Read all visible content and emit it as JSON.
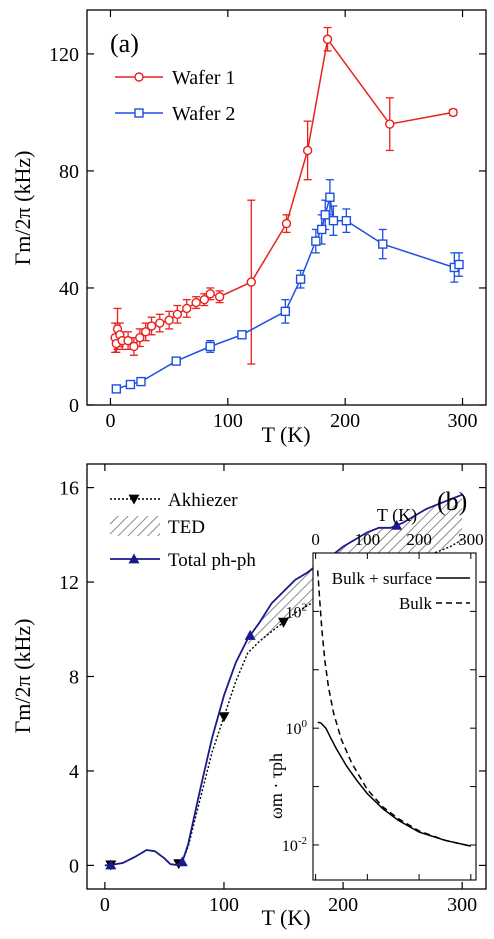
{
  "chart_data": [
    {
      "type": "line",
      "panel_label": "(a)",
      "xlabel": "T (K)",
      "ylabel": "Γm/2π (kHz)",
      "xlim": [
        -20,
        320
      ],
      "ylim": [
        0,
        135
      ],
      "xticks": [
        0,
        100,
        200,
        300
      ],
      "yticks": [
        0,
        40,
        80,
        120
      ],
      "grid": false,
      "legend": "top-left",
      "series": [
        {
          "name": "Wafer 1",
          "color": "#e8201e",
          "marker": "circle",
          "points": [
            {
              "x": 4,
              "y": 23,
              "err": 5
            },
            {
              "x": 5,
              "y": 21,
              "err": 3
            },
            {
              "x": 6,
              "y": 26,
              "err": 7
            },
            {
              "x": 8,
              "y": 24,
              "err": 4
            },
            {
              "x": 10,
              "y": 22,
              "err": 3
            },
            {
              "x": 15,
              "y": 22,
              "err": 3
            },
            {
              "x": 20,
              "y": 20,
              "err": 3
            },
            {
              "x": 25,
              "y": 23,
              "err": 3
            },
            {
              "x": 30,
              "y": 25,
              "err": 3
            },
            {
              "x": 35,
              "y": 27,
              "err": 3
            },
            {
              "x": 42,
              "y": 28,
              "err": 3
            },
            {
              "x": 50,
              "y": 29,
              "err": 3
            },
            {
              "x": 57,
              "y": 31,
              "err": 3
            },
            {
              "x": 65,
              "y": 33,
              "err": 3
            },
            {
              "x": 73,
              "y": 35,
              "err": 2
            },
            {
              "x": 80,
              "y": 36,
              "err": 2
            },
            {
              "x": 85,
              "y": 38,
              "err": 2
            },
            {
              "x": 93,
              "y": 37,
              "err": 2
            },
            {
              "x": 120,
              "y": 42,
              "err": 28
            },
            {
              "x": 150,
              "y": 62,
              "err": 3
            },
            {
              "x": 168,
              "y": 87,
              "err": 10
            },
            {
              "x": 185,
              "y": 125,
              "err": 4
            },
            {
              "x": 238,
              "y": 96,
              "err": 9
            },
            {
              "x": 292,
              "y": 100,
              "err": 1
            }
          ]
        },
        {
          "name": "Wafer 2",
          "color": "#1f4fe0",
          "marker": "square",
          "points": [
            {
              "x": 5,
              "y": 5.5,
              "err": 1
            },
            {
              "x": 17,
              "y": 7,
              "err": 1
            },
            {
              "x": 26,
              "y": 8,
              "err": 1
            },
            {
              "x": 56,
              "y": 15,
              "err": 1
            },
            {
              "x": 85,
              "y": 20,
              "err": 2
            },
            {
              "x": 112,
              "y": 24,
              "err": 1
            },
            {
              "x": 149,
              "y": 32,
              "err": 4
            },
            {
              "x": 162,
              "y": 43,
              "err": 3
            },
            {
              "x": 175,
              "y": 56,
              "err": 4
            },
            {
              "x": 180,
              "y": 60,
              "err": 5
            },
            {
              "x": 183,
              "y": 65,
              "err": 5
            },
            {
              "x": 187,
              "y": 71,
              "err": 6
            },
            {
              "x": 190,
              "y": 63,
              "err": 5
            },
            {
              "x": 201,
              "y": 63,
              "err": 4
            },
            {
              "x": 232,
              "y": 55,
              "err": 5
            },
            {
              "x": 293,
              "y": 47,
              "err": 5
            },
            {
              "x": 297,
              "y": 48,
              "err": 4
            }
          ]
        }
      ]
    },
    {
      "type": "line",
      "panel_label": "(b)",
      "xlabel": "T (K)",
      "ylabel": "Γm/2π (kHz)",
      "xlim": [
        -15,
        320
      ],
      "ylim": [
        -1,
        17
      ],
      "xticks": [
        0,
        100,
        200,
        300
      ],
      "yticks": [
        0,
        4,
        8,
        12,
        16
      ],
      "grid": false,
      "legend": "top-left",
      "series": [
        {
          "name": "Akhiezer",
          "color": "#000000",
          "style": "dotted",
          "marker": "triangle-down",
          "x": [
            0,
            5,
            15,
            25,
            35,
            42,
            50,
            55,
            60,
            65,
            70,
            80,
            90,
            100,
            110,
            120,
            130,
            140,
            150,
            160,
            170,
            180,
            190,
            200,
            210,
            220,
            230,
            240,
            250,
            260,
            270,
            280,
            290,
            300
          ],
          "y": [
            0,
            0.02,
            0.1,
            0.35,
            0.65,
            0.6,
            0.3,
            0.05,
            0.02,
            0.15,
            0.8,
            2.8,
            4.8,
            6.3,
            7.8,
            9.0,
            9.5,
            9.9,
            10.3,
            10.7,
            11.0,
            11.3,
            11.5,
            11.9,
            12.1,
            12.5,
            12.7,
            12.6,
            12.8,
            12.9,
            13.1,
            13.3,
            13.5,
            13.8
          ],
          "marker_x": [
            5,
            62,
            100,
            150,
            195,
            255
          ]
        },
        {
          "name": "TED",
          "color": "#808080",
          "style": "hatched"
        },
        {
          "name": "Total ph-ph",
          "color": "#1a1a8c",
          "style": "solid",
          "marker": "triangle-up",
          "x": [
            0,
            5,
            15,
            25,
            35,
            42,
            50,
            55,
            60,
            65,
            70,
            80,
            90,
            100,
            110,
            120,
            130,
            140,
            150,
            160,
            170,
            180,
            190,
            200,
            210,
            220,
            230,
            240,
            250,
            260,
            270,
            280,
            290,
            300
          ],
          "y": [
            0,
            0.02,
            0.1,
            0.35,
            0.65,
            0.6,
            0.3,
            0.05,
            0.02,
            0.15,
            0.9,
            3.2,
            5.4,
            7.2,
            8.6,
            9.6,
            10.3,
            11.1,
            11.6,
            12.1,
            12.4,
            12.8,
            13.1,
            13.5,
            13.8,
            14.1,
            14.3,
            14.3,
            14.5,
            14.8,
            15.1,
            15.3,
            15.5,
            15.7
          ],
          "marker_x": [
            5,
            65,
            122,
            182,
            245
          ]
        }
      ],
      "inset": {
        "xlabel": "T (K)",
        "ylabel": "ωm · τph",
        "xlim": [
          -5,
          310
        ],
        "ylim_log10": [
          -2.6,
          3.0
        ],
        "xticks": [
          0,
          100,
          200,
          300
        ],
        "ytick_labels": [
          {
            "exp": 2,
            "label": "10",
            "sup": "2"
          },
          {
            "exp": 0,
            "label": "10",
            "sup": "0"
          },
          {
            "exp": -2,
            "label": "10",
            "sup": "-2"
          }
        ],
        "series": [
          {
            "name": "Bulk + surface",
            "style": "solid",
            "x": [
              4,
              10,
              20,
              30,
              40,
              60,
              80,
              100,
              130,
              160,
              200,
              250,
              300
            ],
            "log10_y": [
              0.1,
              0.09,
              0.0,
              -0.18,
              -0.35,
              -0.65,
              -0.9,
              -1.12,
              -1.38,
              -1.58,
              -1.78,
              -1.92,
              -2.02
            ]
          },
          {
            "name": "Bulk",
            "style": "dashed",
            "x": [
              4,
              8,
              12,
              18,
              25,
              35,
              50,
              70,
              100,
              130,
              160,
              200,
              250,
              300
            ],
            "log10_y": [
              2.7,
              2.2,
              1.7,
              1.15,
              0.7,
              0.25,
              -0.2,
              -0.6,
              -1.05,
              -1.35,
              -1.55,
              -1.76,
              -1.92,
              -2.02
            ]
          }
        ]
      }
    }
  ]
}
